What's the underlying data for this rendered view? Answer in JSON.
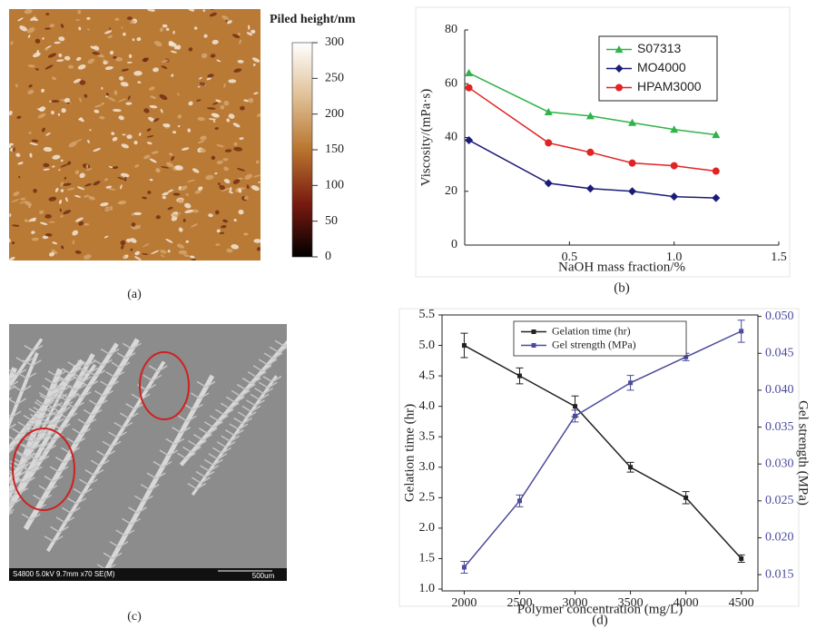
{
  "image_a": {
    "caption": "(a)",
    "colorbar": {
      "label": "Piled height/nm",
      "lim": [
        0,
        300
      ],
      "ticks": [
        0,
        50,
        100,
        150,
        200,
        250,
        300
      ]
    }
  },
  "image_c": {
    "caption": "(c)",
    "info": "S4800 5.0kV 9.7mm x70 SE(M)",
    "scale": "500um"
  },
  "chart_data": [
    {
      "type": "line",
      "caption": "(b)",
      "x_label": "NaOH mass fraction/%",
      "y_label": "Viscosity/(mPa·s)",
      "x": [
        0.02,
        0.4,
        0.6,
        0.8,
        1.0,
        1.2
      ],
      "series": [
        {
          "name": "S07313",
          "color": "#2fb34a",
          "marker": "triangle",
          "values": [
            64,
            49.5,
            48,
            45.5,
            43,
            41
          ]
        },
        {
          "name": "MO4000",
          "color": "#1c1c78",
          "marker": "diamond",
          "values": [
            39,
            23,
            21,
            20,
            18,
            17.5
          ]
        },
        {
          "name": "HPAM3000",
          "color": "#e02424",
          "marker": "circle",
          "values": [
            58.5,
            38,
            34.5,
            30.5,
            29.5,
            27.5
          ]
        }
      ],
      "xlim": [
        0,
        1.5
      ],
      "xticks": [
        0.5,
        {
          "value": 1,
          "label": "1.0"
        },
        1.5
      ],
      "ylim": [
        0,
        80
      ],
      "yticks": [
        0,
        20,
        40,
        60,
        80
      ],
      "legend": "upper right"
    },
    {
      "type": "line",
      "caption": "(d)",
      "x_label": "Polymer concentration (mg/L)",
      "y_label": "Gelation time (hr)",
      "y2_label": "Gel strength (MPa)",
      "x": [
        2000,
        2500,
        3000,
        3500,
        4000,
        4500
      ],
      "series": [
        {
          "name": "Gelation time (hr)",
          "color": "#222222",
          "marker": "square",
          "values": [
            5.0,
            4.5,
            4.0,
            3.0,
            2.5,
            1.5
          ],
          "errors": [
            0.2,
            0.13,
            0.17,
            0.08,
            0.1,
            0.06
          ]
        },
        {
          "name": "Gel strength (MPa)",
          "color": "#4b4b9c",
          "marker": "square",
          "axis": "y2",
          "values": [
            0.016,
            0.025,
            0.0365,
            0.041,
            0.0445,
            0.048
          ],
          "errors": [
            0.0008,
            0.0008,
            0.0008,
            0.001,
            0.0005,
            0.0015
          ]
        }
      ],
      "xlim": [
        1800,
        4650
      ],
      "xticks": [
        2000,
        2500,
        3000,
        3500,
        4000,
        4500
      ],
      "ylim": [
        0.97,
        5.5
      ],
      "yticks": [
        {
          "value": 1,
          "label": "1.0"
        },
        1.5,
        {
          "value": 2,
          "label": "2.0"
        },
        2.5,
        {
          "value": 3,
          "label": "3.0"
        },
        3.5,
        {
          "value": 4,
          "label": "4.0"
        },
        4.5,
        {
          "value": 5,
          "label": "5.0"
        },
        5.5
      ],
      "y2lim": [
        0.0128,
        0.0502
      ],
      "y2ticks": [
        0.015,
        {
          "value": 0.02,
          "label": "0.020"
        },
        0.025,
        {
          "value": 0.03,
          "label": "0.030"
        },
        0.035,
        {
          "value": 0.04,
          "label": "0.040"
        },
        0.045,
        {
          "value": 0.05,
          "label": "0.050"
        }
      ],
      "legend": "upper center"
    }
  ]
}
